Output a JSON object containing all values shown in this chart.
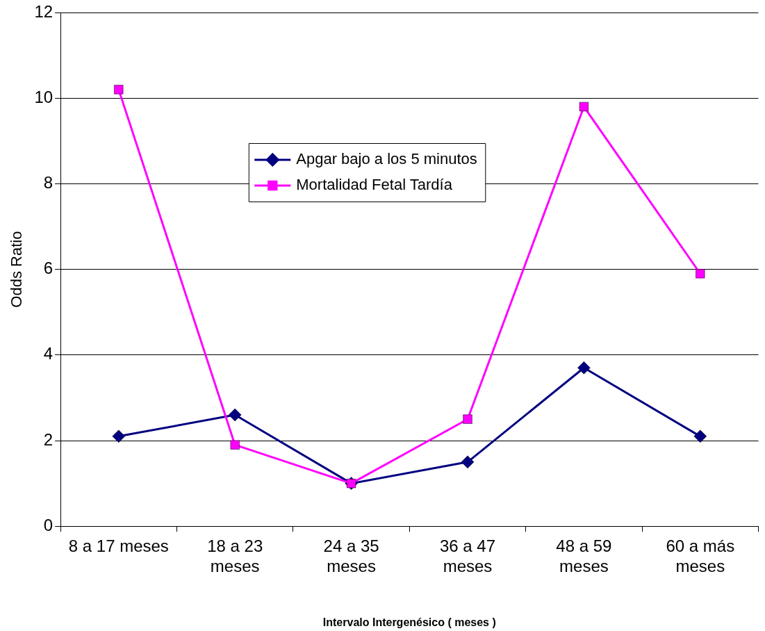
{
  "chart_data": {
    "type": "line",
    "xlabel": "Intervalo Intergenésico ( meses )",
    "ylabel": "Odds Ratio",
    "categories": [
      "8 a 17 meses",
      "18 a 23 meses",
      "24 a 35 meses",
      "36 a 47 meses",
      "48 a 59 meses",
      "60 a más meses"
    ],
    "series": [
      {
        "name": "Apgar bajo a los 5 minutos",
        "color": "#000080",
        "marker": "diamond",
        "values": [
          2.1,
          2.6,
          1.0,
          1.5,
          3.7,
          2.1
        ]
      },
      {
        "name": "Mortalidad Fetal Tardía",
        "color": "#ff00ff",
        "marker": "square",
        "values": [
          10.2,
          1.9,
          1.0,
          2.5,
          9.8,
          5.9
        ]
      }
    ],
    "ylim": [
      0,
      12
    ],
    "yticks": [
      0,
      2,
      4,
      6,
      8,
      10,
      12
    ],
    "grid": "y",
    "legend": "top"
  }
}
